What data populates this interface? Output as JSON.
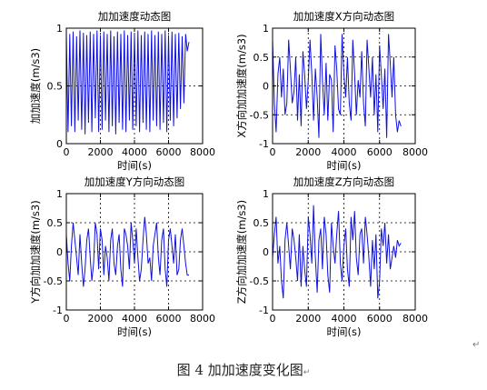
{
  "figure": {
    "caption": "图 4 加加速度变化图",
    "return_mark": "↵"
  },
  "colors": {
    "line": "#1010dd",
    "frame": "#000000",
    "grid": "#000000"
  },
  "chart_data": [
    {
      "type": "line",
      "title": "加加速度动态图",
      "xlabel": "时间(s)",
      "ylabel": "加加速度(m/s3)",
      "xlim": [
        0,
        8000
      ],
      "ylim": [
        0,
        1
      ],
      "xticks": [
        0,
        2000,
        4000,
        6000,
        8000
      ],
      "yticks": [
        0,
        0.5,
        1
      ],
      "ytick_labels": [
        "0",
        "0.5",
        "1"
      ],
      "grid": true,
      "series": [
        {
          "x": [
            0,
            100,
            200,
            300,
            400,
            500,
            600,
            700,
            800,
            900,
            1000,
            1100,
            1200,
            1300,
            1400,
            1500,
            1600,
            1700,
            1800,
            1900,
            2000,
            2100,
            2200,
            2300,
            2400,
            2500,
            2600,
            2700,
            2800,
            2900,
            3000,
            3100,
            3200,
            3300,
            3400,
            3500,
            3600,
            3700,
            3800,
            3900,
            4000,
            4100,
            4200,
            4300,
            4400,
            4500,
            4600,
            4700,
            4800,
            4900,
            5000,
            5100,
            5200,
            5300,
            5400,
            5500,
            5600,
            5700,
            5800,
            5900,
            6000,
            6100,
            6200,
            6300,
            6400,
            6500,
            6600,
            6700,
            6800,
            6900,
            7000,
            7100,
            7200
          ],
          "values": [
            0.95,
            0.1,
            0.95,
            0.15,
            0.97,
            0.1,
            0.93,
            0.2,
            0.98,
            0.12,
            0.96,
            0.08,
            0.94,
            0.18,
            0.97,
            0.1,
            0.95,
            0.22,
            0.98,
            0.1,
            0.94,
            0.12,
            0.97,
            0.2,
            0.95,
            0.1,
            0.98,
            0.15,
            0.93,
            0.08,
            0.97,
            0.18,
            0.95,
            0.12,
            0.98,
            0.1,
            0.94,
            0.2,
            0.97,
            0.12,
            0.95,
            0.15,
            0.98,
            0.1,
            0.94,
            0.18,
            0.97,
            0.12,
            0.95,
            0.1,
            0.98,
            0.2,
            0.94,
            0.15,
            0.97,
            0.12,
            0.95,
            0.18,
            0.98,
            0.1,
            0.94,
            0.2,
            0.97,
            0.15,
            0.95,
            0.22,
            0.96,
            0.3,
            0.93,
            0.35,
            0.95,
            0.8,
            0.88
          ]
        }
      ]
    },
    {
      "type": "line",
      "title": "加加速度X方向动态图",
      "xlabel": "时间(s)",
      "ylabel": "X方向加加速度(m/s3)",
      "xlim": [
        0,
        8000
      ],
      "ylim": [
        -1,
        1
      ],
      "xticks": [
        0,
        2000,
        4000,
        6000,
        8000
      ],
      "yticks": [
        -1,
        -0.5,
        0,
        0.5,
        1
      ],
      "ytick_labels": [
        "-1",
        "-0.5",
        "0",
        "0.5",
        "1"
      ],
      "grid": true,
      "series": [
        {
          "x": [
            0,
            100,
            200,
            300,
            400,
            500,
            600,
            700,
            800,
            900,
            1000,
            1100,
            1200,
            1300,
            1400,
            1500,
            1600,
            1700,
            1800,
            1900,
            2000,
            2100,
            2200,
            2300,
            2400,
            2500,
            2600,
            2700,
            2800,
            2900,
            3000,
            3100,
            3200,
            3300,
            3400,
            3500,
            3600,
            3700,
            3800,
            3900,
            4000,
            4100,
            4200,
            4300,
            4400,
            4500,
            4600,
            4700,
            4800,
            4900,
            5000,
            5100,
            5200,
            5300,
            5400,
            5500,
            5600,
            5700,
            5800,
            5900,
            6000,
            6100,
            6200,
            6300,
            6400,
            6500,
            6600,
            6700,
            6800,
            6900,
            7000,
            7100,
            7200
          ],
          "values": [
            0.8,
            -0.3,
            -0.8,
            0.2,
            0.5,
            -0.2,
            0.3,
            -0.5,
            -0.3,
            0.8,
            0.3,
            -0.3,
            -0.1,
            0.5,
            -0.6,
            0.2,
            -0.7,
            0.6,
            0.2,
            -0.4,
            0.1,
            0.8,
            0.2,
            -0.6,
            0.3,
            -0.2,
            -0.9,
            0.9,
            0.1,
            -0.5,
            0.4,
            -0.6,
            0.2,
            0.1,
            -0.8,
            0.7,
            0.3,
            -0.4,
            -0.5,
            0.9,
            0.2,
            -0.2,
            0.5,
            -0.3,
            -0.6,
            0.8,
            0.2,
            -0.5,
            0.1,
            -0.2,
            0.6,
            -0.3,
            -0.7,
            0.8,
            0.3,
            -0.2,
            0.5,
            -0.5,
            0.2,
            -0.8,
            0.7,
            0.2,
            -0.4,
            0.3,
            -0.9,
            0.9,
            0.4,
            -0.2,
            0.5,
            -0.5,
            -0.8,
            -0.6,
            -0.7
          ]
        }
      ]
    },
    {
      "type": "line",
      "title": "加加速度Y方向动态图",
      "xlabel": "时间(s)",
      "ylabel": "Y方向加加速度(m/s3)",
      "xlim": [
        0,
        8000
      ],
      "ylim": [
        -1,
        1
      ],
      "xticks": [
        0,
        2000,
        4000,
        6000,
        8000
      ],
      "yticks": [
        -1,
        -0.5,
        0,
        0.5,
        1
      ],
      "ytick_labels": [
        "-1",
        "-0.5",
        "0",
        "0.5",
        "1"
      ],
      "grid": true,
      "series": [
        {
          "x": [
            0,
            100,
            200,
            300,
            400,
            500,
            600,
            700,
            800,
            900,
            1000,
            1100,
            1200,
            1300,
            1400,
            1500,
            1600,
            1700,
            1800,
            1900,
            2000,
            2100,
            2200,
            2300,
            2400,
            2500,
            2600,
            2700,
            2800,
            2900,
            3000,
            3100,
            3200,
            3300,
            3400,
            3500,
            3600,
            3700,
            3800,
            3900,
            4000,
            4100,
            4200,
            4300,
            4400,
            4500,
            4600,
            4700,
            4800,
            4900,
            5000,
            5100,
            5200,
            5300,
            5400,
            5500,
            5600,
            5700,
            5800,
            5900,
            6000,
            6100,
            6200,
            6300,
            6400,
            6500,
            6600,
            6700,
            6800,
            6900,
            7000,
            7100,
            7200
          ],
          "values": [
            0.3,
            -0.2,
            -0.5,
            0.1,
            0.5,
            0.2,
            -0.1,
            -0.4,
            0.3,
            -0.2,
            -0.6,
            -0.3,
            0.2,
            0.4,
            -0.1,
            -0.5,
            -0.2,
            0.5,
            0.3,
            -0.3,
            0.4,
            0.2,
            -0.4,
            0.1,
            -0.1,
            -0.5,
            0.2,
            0.4,
            -0.2,
            -0.4,
            0.1,
            0.3,
            -0.3,
            -0.6,
            0.4,
            0.3,
            0.1,
            -0.3,
            0.5,
            0.2,
            -0.2,
            0.4,
            -0.1,
            -0.5,
            -0.3,
            0.2,
            0.6,
            0.3,
            -0.2,
            -0.1,
            -0.5,
            0.1,
            0.3,
            0.5,
            -0.1,
            -0.4,
            0.2,
            0.4,
            -0.3,
            -0.6,
            0.2,
            0.4,
            0.1,
            -0.2,
            0.3,
            -0.4,
            -0.3,
            0.2,
            0.4,
            0.1,
            -0.2,
            -0.4,
            -0.4
          ]
        }
      ]
    },
    {
      "type": "line",
      "title": "加加速度Z方向动态图",
      "xlabel": "时间(s)",
      "ylabel": "Z方向加加速度(m/s3)",
      "xlim": [
        0,
        8000
      ],
      "ylim": [
        -1,
        1
      ],
      "xticks": [
        0,
        2000,
        4000,
        6000,
        8000
      ],
      "yticks": [
        -1,
        -0.5,
        0,
        0.5,
        1
      ],
      "ytick_labels": [
        "-1",
        "-0.5",
        "0",
        "0.5",
        "1"
      ],
      "grid": true,
      "series": [
        {
          "x": [
            0,
            100,
            200,
            300,
            400,
            500,
            600,
            700,
            800,
            900,
            1000,
            1100,
            1200,
            1300,
            1400,
            1500,
            1600,
            1700,
            1800,
            1900,
            2000,
            2100,
            2200,
            2300,
            2400,
            2500,
            2600,
            2700,
            2800,
            2900,
            3000,
            3100,
            3200,
            3300,
            3400,
            3500,
            3600,
            3700,
            3800,
            3900,
            4000,
            4100,
            4200,
            4300,
            4400,
            4500,
            4600,
            4700,
            4800,
            4900,
            5000,
            5100,
            5200,
            5300,
            5400,
            5500,
            5600,
            5700,
            5800,
            5900,
            6000,
            6100,
            6200,
            6300,
            6400,
            6500,
            6600,
            6700,
            6800,
            6900,
            7000,
            7100,
            7200
          ],
          "values": [
            -0.1,
            0.3,
            0.6,
            -0.2,
            0.1,
            -0.5,
            -0.8,
            0.2,
            0.5,
            0.1,
            -0.3,
            0.4,
            0.2,
            -0.1,
            -0.5,
            0.3,
            -0.6,
            0.1,
            -0.3,
            -0.6,
            0.6,
            0.3,
            -0.2,
            0.8,
            -0.1,
            -0.7,
            0.2,
            0.4,
            -0.3,
            0.6,
            0.3,
            -0.4,
            -0.7,
            0.5,
            0.1,
            -0.2,
            0.3,
            0.7,
            -0.2,
            -0.5,
            0.1,
            0.4,
            -0.3,
            -0.6,
            0.6,
            0.2,
            0.7,
            -0.1,
            -0.4,
            0.3,
            0.4,
            -0.2,
            0.6,
            0.3,
            -0.1,
            -0.6,
            0.2,
            -0.3,
            0.3,
            -0.8,
            -0.5,
            0.4,
            0.1,
            0.5,
            -0.2,
            0.3,
            -0.3,
            -0.1,
            0.1,
            -0.1,
            0.2,
            0.1,
            0.15
          ]
        }
      ]
    }
  ]
}
